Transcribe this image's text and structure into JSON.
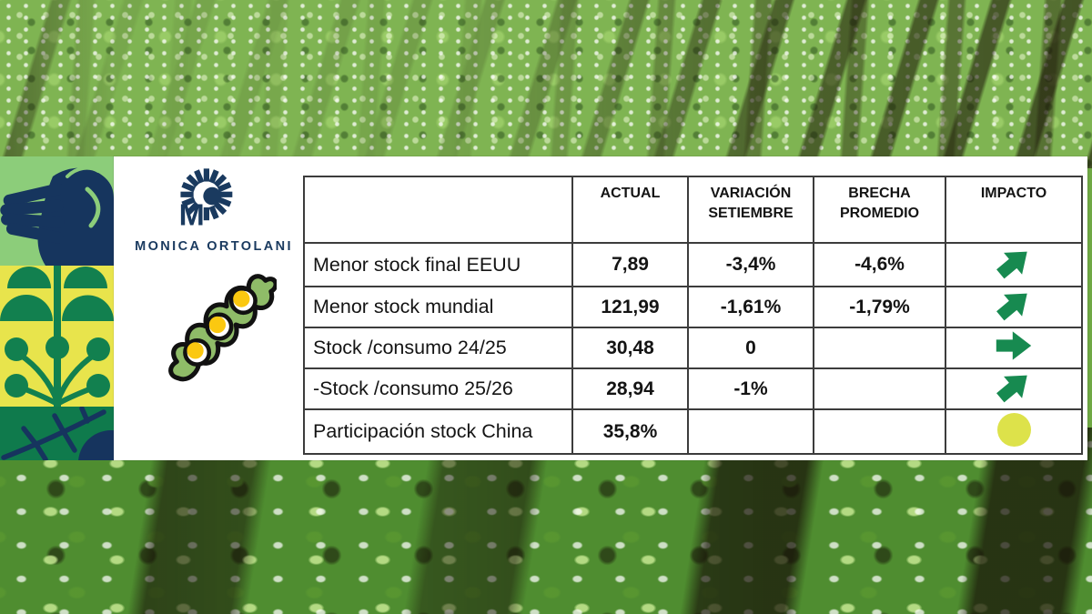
{
  "branding": {
    "name": "MONICA ORTOLANI",
    "logo_icon": "sunburst-monogram-icon",
    "illustration_icon": "soybean-pod-icon"
  },
  "chart_data": {
    "type": "table",
    "columns": [
      "",
      "ACTUAL",
      "VARIACIÓN\nSETIEMBRE",
      "BRECHA\nPROMEDIO",
      "IMPACTO"
    ],
    "rows": [
      {
        "label": "Menor stock final EEUU",
        "actual": "7,89",
        "variacion_setiembre": "-3,4%",
        "brecha_promedio": "-4,6%",
        "impacto": "arrow-up-right"
      },
      {
        "label": "Menor stock mundial",
        "actual": "121,99",
        "variacion_setiembre": "-1,61%",
        "brecha_promedio": "-1,79%",
        "impacto": "arrow-up-right"
      },
      {
        "label": "Stock /consumo 24/25",
        "actual": "30,48",
        "variacion_setiembre": "0",
        "brecha_promedio": "",
        "impacto": "arrow-right"
      },
      {
        "label": "-Stock /consumo 25/26",
        "actual": "28,94",
        "variacion_setiembre": "-1%",
        "brecha_promedio": "",
        "impacto": "arrow-up-right"
      },
      {
        "label": "Participación stock China",
        "actual": "35,8%",
        "variacion_setiembre": "",
        "brecha_promedio": "",
        "impacto": "circle-yellow"
      }
    ],
    "legend": {
      "arrow-up-right": "positive/bullish impact arrow",
      "arrow-right": "neutral impact arrow",
      "circle-yellow": "neutral/watch indicator"
    },
    "grid": true,
    "title": ""
  },
  "colors": {
    "impact_arrow_green": "#178a50",
    "impact_circle_yellow": "#dde24a",
    "brand_navy": "#1a3a5f",
    "deco_light_green": "#8ccd7a",
    "deco_yellow": "#e8e44c",
    "deco_plant_green": "#12804f",
    "deco_leaf_green": "#0f7a4c",
    "table_border": "#3c3c3c",
    "panel_bg": "#ffffff"
  }
}
